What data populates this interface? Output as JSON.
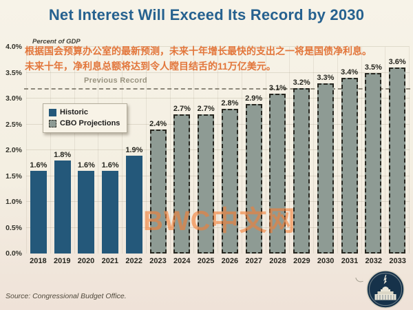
{
  "title": "Net Interest Will Exceed Its Record by 2030",
  "axis_note": "Percent of GDP",
  "overlay_text": {
    "line1": "根据国会预算办公室的最新预测，未来十年增长最快的支出之一将是国债净利息。",
    "line2": "未来十年，净利息总额将达到令人瞠目结舌的11万亿美元。"
  },
  "watermark": "BWC中文网",
  "legend": {
    "historic_label": "Historic",
    "projection_label": "CBO Projections"
  },
  "source": "Source: Congressional Budget Office.",
  "colors": {
    "title": "#26618f",
    "historic_bar": "#24587a",
    "projection_bar": "#8e9b94",
    "overlay_text": "#e2763b",
    "watermark": "#f47e34",
    "record_line": "#8d887a",
    "background": "#f4efe2"
  },
  "chart_data": {
    "type": "bar",
    "title": "Net Interest Will Exceed Its Record by 2030",
    "ylabel": "Percent of GDP",
    "categories": [
      "2018",
      "2019",
      "2020",
      "2021",
      "2022",
      "2023",
      "2024",
      "2025",
      "2026",
      "2027",
      "2028",
      "2029",
      "2030",
      "2031",
      "2032",
      "2033"
    ],
    "values": [
      1.6,
      1.8,
      1.6,
      1.6,
      1.9,
      2.4,
      2.7,
      2.7,
      2.8,
      2.9,
      3.1,
      3.2,
      3.3,
      3.4,
      3.5,
      3.6
    ],
    "labels": [
      "1.6%",
      "1.8%",
      "1.6%",
      "1.6%",
      "1.9%",
      "2.4%",
      "2.7%",
      "2.7%",
      "2.8%",
      "2.9%",
      "3.1%",
      "3.2%",
      "3.3%",
      "3.4%",
      "3.5%",
      "3.6%"
    ],
    "segments": [
      "historic",
      "historic",
      "historic",
      "historic",
      "historic",
      "projection",
      "projection",
      "projection",
      "projection",
      "projection",
      "projection",
      "projection",
      "projection",
      "projection",
      "projection",
      "projection"
    ],
    "series": [
      {
        "name": "Historic",
        "years": [
          "2018",
          "2019",
          "2020",
          "2021",
          "2022"
        ],
        "values": [
          1.6,
          1.8,
          1.6,
          1.6,
          1.9
        ]
      },
      {
        "name": "CBO Projections",
        "years": [
          "2023",
          "2024",
          "2025",
          "2026",
          "2027",
          "2028",
          "2029",
          "2030",
          "2031",
          "2032",
          "2033"
        ],
        "values": [
          2.4,
          2.7,
          2.7,
          2.8,
          2.9,
          3.1,
          3.2,
          3.3,
          3.4,
          3.5,
          3.6
        ]
      }
    ],
    "ylim": [
      0,
      4.0
    ],
    "yticks": [
      "0.0%",
      "0.5%",
      "1.0%",
      "1.5%",
      "2.0%",
      "2.5%",
      "3.0%",
      "3.5%",
      "4.0%"
    ],
    "grid": true,
    "legend_position": "upper-left",
    "annotations": [
      {
        "label": "Previous Record",
        "y": 3.2,
        "style": "dashed-line"
      }
    ]
  }
}
